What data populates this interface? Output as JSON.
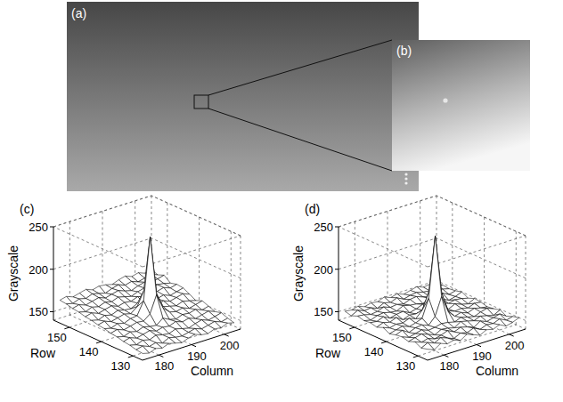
{
  "images": [
    {
      "label": "(a)"
    },
    {
      "label": "(b)"
    }
  ],
  "chart_data": [
    {
      "type": "surface",
      "label": "(c)",
      "x_label": "Column",
      "y_label": "Row",
      "z_label": "Grayscale",
      "x": [
        176,
        178,
        180,
        182,
        184,
        186,
        188,
        190,
        192,
        194,
        196,
        198,
        200,
        202,
        204
      ],
      "y": [
        128,
        130,
        132,
        134,
        136,
        138,
        140,
        142,
        144,
        146,
        148,
        150,
        152,
        154
      ],
      "z": [
        [
          145,
          143,
          146,
          144,
          147,
          145,
          143,
          146,
          148,
          145,
          144,
          147,
          146,
          149,
          147
        ],
        [
          146,
          148,
          145,
          147,
          144,
          148,
          146,
          145,
          147,
          149,
          146,
          148,
          150,
          147,
          149
        ],
        [
          148,
          146,
          149,
          147,
          150,
          148,
          147,
          150,
          148,
          146,
          149,
          151,
          148,
          150,
          152
        ],
        [
          149,
          151,
          148,
          150,
          152,
          149,
          151,
          150,
          153,
          150,
          152,
          149,
          151,
          153,
          150
        ],
        [
          151,
          149,
          152,
          150,
          153,
          151,
          150,
          156,
          152,
          150,
          153,
          152,
          154,
          151,
          153
        ],
        [
          152,
          154,
          151,
          153,
          155,
          154,
          160,
          180,
          162,
          155,
          153,
          155,
          152,
          154,
          156
        ],
        [
          154,
          152,
          155,
          153,
          156,
          157,
          172,
          245,
          175,
          158,
          156,
          154,
          157,
          155,
          153
        ],
        [
          155,
          157,
          154,
          156,
          158,
          156,
          162,
          178,
          163,
          157,
          159,
          156,
          158,
          160,
          157
        ],
        [
          157,
          155,
          158,
          156,
          159,
          157,
          156,
          160,
          158,
          161,
          158,
          160,
          157,
          159,
          161
        ],
        [
          158,
          160,
          157,
          159,
          161,
          158,
          160,
          159,
          162,
          160,
          158,
          161,
          163,
          160,
          162
        ],
        [
          160,
          158,
          161,
          159,
          162,
          160,
          163,
          161,
          159,
          162,
          164,
          161,
          163,
          162,
          160
        ],
        [
          161,
          163,
          160,
          162,
          164,
          161,
          163,
          165,
          162,
          160,
          163,
          165,
          162,
          164,
          166
        ],
        [
          163,
          161,
          164,
          162,
          165,
          163,
          161,
          164,
          166,
          163,
          165,
          162,
          164,
          166,
          163
        ],
        [
          164,
          166,
          163,
          165,
          167,
          164,
          166,
          165,
          163,
          166,
          168,
          165,
          167,
          164,
          166
        ]
      ],
      "xlim": [
        175,
        205
      ],
      "ylim": [
        127,
        155
      ],
      "zlim": [
        140,
        250
      ],
      "xticks": [
        180,
        190,
        200
      ],
      "yticks": [
        130,
        140,
        150
      ],
      "zticks": [
        150,
        200,
        250
      ],
      "grid": true
    },
    {
      "type": "surface",
      "label": "(d)",
      "x_label": "Column",
      "y_label": "Row",
      "z_label": "Grayscale",
      "x": [
        176,
        178,
        180,
        182,
        184,
        186,
        188,
        190,
        192,
        194,
        196,
        198,
        200,
        202,
        204
      ],
      "y": [
        128,
        130,
        132,
        134,
        136,
        138,
        140,
        142,
        144,
        146,
        148,
        150,
        152,
        154
      ],
      "z": [
        [
          150,
          147,
          152,
          149,
          151,
          148,
          153,
          150,
          147,
          151,
          149,
          152,
          148,
          150,
          153
        ],
        [
          148,
          152,
          149,
          153,
          150,
          147,
          151,
          149,
          152,
          148,
          151,
          150,
          153,
          149,
          151
        ],
        [
          152,
          149,
          151,
          148,
          150,
          153,
          149,
          152,
          150,
          147,
          152,
          149,
          151,
          153,
          148
        ],
        [
          149,
          151,
          153,
          150,
          147,
          151,
          150,
          148,
          153,
          151,
          149,
          152,
          150,
          148,
          152
        ],
        [
          151,
          148,
          150,
          152,
          149,
          150,
          152,
          151,
          149,
          152,
          150,
          148,
          151,
          153,
          150
        ],
        [
          150,
          153,
          148,
          151,
          152,
          149,
          157,
          178,
          158,
          150,
          152,
          149,
          152,
          150,
          149
        ],
        [
          148,
          150,
          152,
          149,
          151,
          154,
          175,
          246,
          176,
          153,
          150,
          151,
          149,
          152,
          151
        ],
        [
          152,
          149,
          151,
          150,
          153,
          150,
          158,
          177,
          157,
          151,
          149,
          153,
          150,
          148,
          152
        ],
        [
          149,
          152,
          150,
          153,
          148,
          151,
          150,
          152,
          149,
          150,
          153,
          150,
          152,
          151,
          149
        ],
        [
          151,
          150,
          153,
          149,
          151,
          152,
          148,
          150,
          153,
          151,
          149,
          152,
          148,
          150,
          153
        ],
        [
          150,
          148,
          151,
          152,
          150,
          149,
          153,
          151,
          150,
          148,
          152,
          150,
          153,
          149,
          151
        ],
        [
          152,
          151,
          149,
          150,
          153,
          150,
          151,
          149,
          152,
          153,
          150,
          148,
          151,
          152,
          150
        ],
        [
          149,
          153,
          150,
          151,
          148,
          152,
          150,
          153,
          149,
          151,
          152,
          150,
          149,
          153,
          151
        ],
        [
          151,
          150,
          152,
          149,
          151,
          150,
          153,
          150,
          152,
          149,
          151,
          153,
          150,
          151,
          149
        ]
      ],
      "xlim": [
        175,
        205
      ],
      "ylim": [
        127,
        155
      ],
      "zlim": [
        140,
        250
      ],
      "xticks": [
        180,
        190,
        200
      ],
      "yticks": [
        130,
        140,
        150
      ],
      "zticks": [
        150,
        200,
        250
      ],
      "grid": true
    }
  ]
}
